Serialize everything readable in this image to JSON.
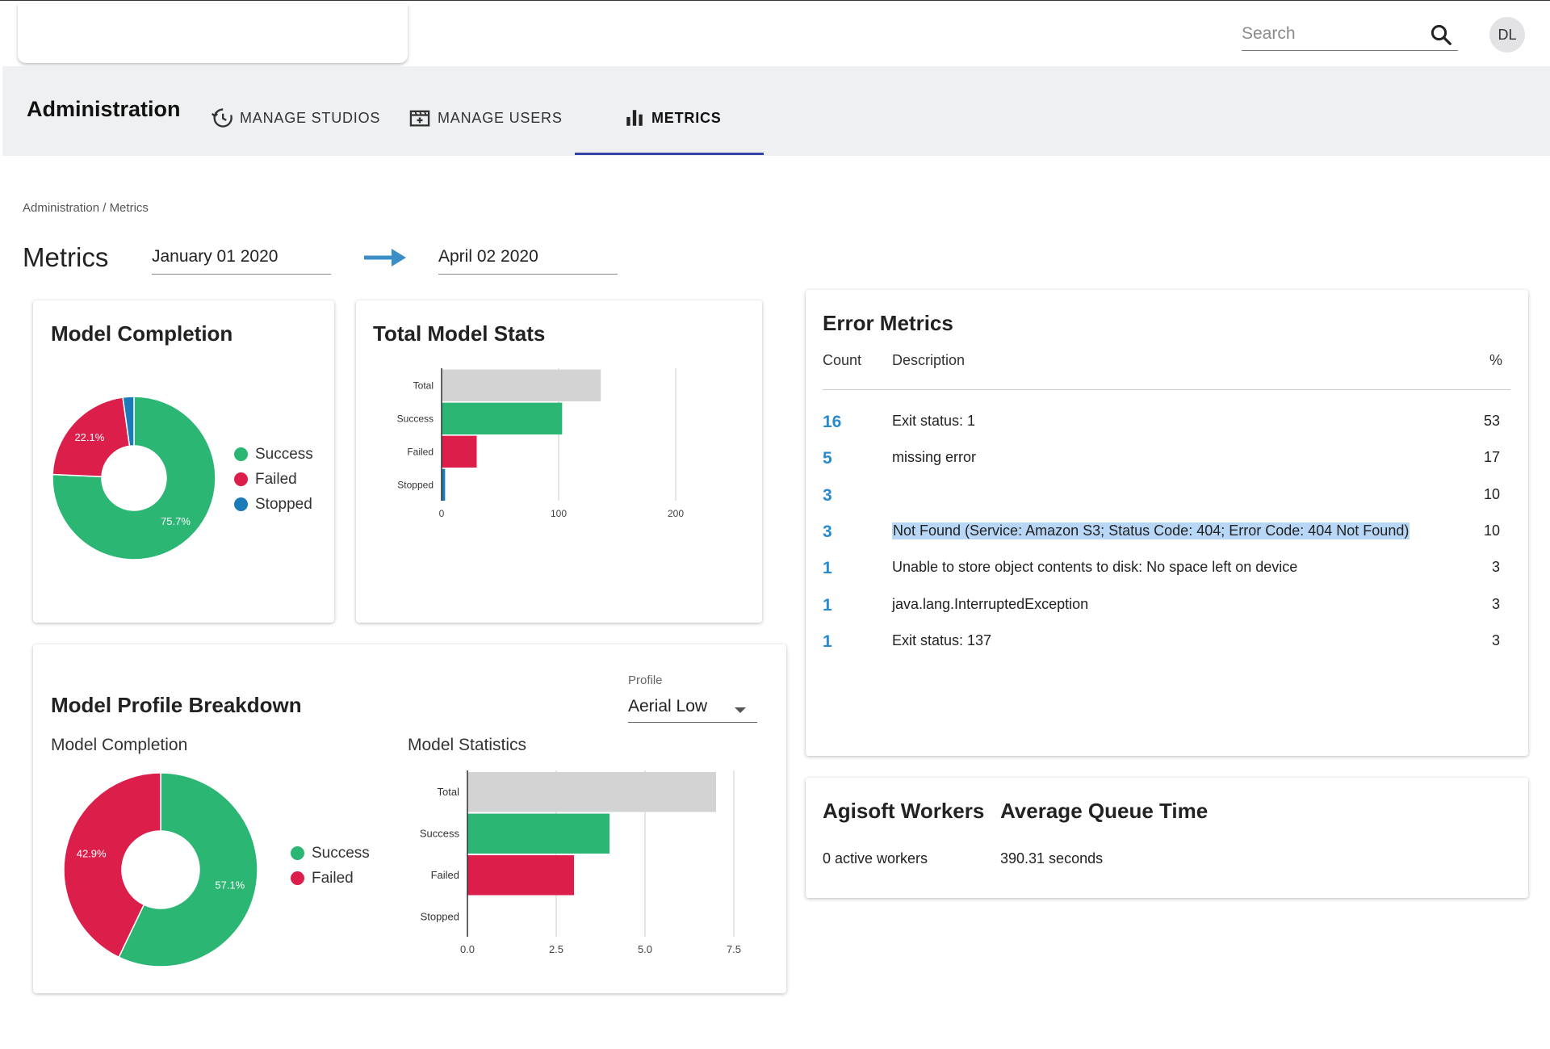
{
  "search": {
    "placeholder": "Search"
  },
  "user": {
    "initials": "DL"
  },
  "nav": {
    "title": "Administration",
    "tabs": [
      {
        "label": "MANAGE STUDIOS",
        "icon": "history-icon"
      },
      {
        "label": "MANAGE USERS",
        "icon": "movie-clapper-icon"
      },
      {
        "label": "METRICS",
        "icon": "bar-chart-icon",
        "active": true
      }
    ]
  },
  "breadcrumb": {
    "parent": "Administration",
    "separator": "/",
    "current": "Metrics"
  },
  "page": {
    "title": "Metrics",
    "start_date": "January 01 2020",
    "end_date": "April 02 2020",
    "accent_color": "#3a8fc7"
  },
  "model_completion": {
    "title": "Model Completion",
    "legend": [
      "Success",
      "Failed",
      "Stopped"
    ],
    "slice_labels": [
      "75.7%",
      "22.1%"
    ]
  },
  "total_model_stats": {
    "title": "Total Model Stats"
  },
  "model_profile": {
    "title": "Model Profile Breakdown",
    "profile_label": "Profile",
    "profile_value": "Aerial Low",
    "completion_subtitle": "Model Completion",
    "statistics_subtitle": "Model Statistics",
    "legend": [
      "Success",
      "Failed"
    ],
    "slice_labels": [
      "57.1%",
      "42.9%"
    ]
  },
  "error_metrics": {
    "title": "Error Metrics",
    "columns": [
      "Count",
      "Description",
      "%"
    ],
    "rows": [
      {
        "count": "16",
        "description": "Exit status: 1",
        "pct": "53"
      },
      {
        "count": "5",
        "description": "missing error",
        "pct": "17"
      },
      {
        "count": "3",
        "description": "",
        "pct": "10"
      },
      {
        "count": "3",
        "description": "Not Found (Service: Amazon S3; Status Code: 404; Error Code: 404 Not Found)",
        "pct": "10",
        "highlighted": true
      },
      {
        "count": "1",
        "description": "Unable to store object contents to disk: No space left on device",
        "pct": "3"
      },
      {
        "count": "1",
        "description": "java.lang.InterruptedException",
        "pct": "3"
      },
      {
        "count": "1",
        "description": "Exit status: 137",
        "pct": "3"
      }
    ]
  },
  "workers": {
    "title": "Agisoft Workers",
    "value": "0 active workers",
    "queue_title": "Average Queue Time",
    "queue_value": "390.31 seconds"
  },
  "colors": {
    "success": "#2bb673",
    "failed": "#dc1e4b",
    "stopped": "#1a7bb9",
    "total": "#d3d3d3"
  },
  "chart_data": [
    {
      "type": "pie",
      "title": "Model Completion",
      "categories": [
        "Success",
        "Failed",
        "Stopped"
      ],
      "values": [
        75.7,
        22.1,
        2.2
      ],
      "labels": [
        "75.7%",
        "22.1%",
        ""
      ]
    },
    {
      "type": "bar",
      "orientation": "horizontal",
      "title": "Total Model Stats",
      "categories": [
        "Total",
        "Success",
        "Failed",
        "Stopped"
      ],
      "values": [
        136,
        103,
        30,
        3
      ],
      "xlim": [
        0,
        200
      ],
      "xticks": [
        "0",
        "100",
        "200"
      ],
      "grid": true
    },
    {
      "type": "pie",
      "title": "Model Completion",
      "categories": [
        "Success",
        "Failed"
      ],
      "values": [
        57.1,
        42.9
      ],
      "labels": [
        "57.1%",
        "42.9%"
      ]
    },
    {
      "type": "bar",
      "orientation": "horizontal",
      "title": "Model Statistics",
      "categories": [
        "Total",
        "Success",
        "Failed",
        "Stopped"
      ],
      "values": [
        7,
        4,
        3,
        0
      ],
      "xlim": [
        0,
        7.5
      ],
      "xticks": [
        "0.0",
        "2.5",
        "5.0",
        "7.5"
      ],
      "grid": true
    }
  ]
}
